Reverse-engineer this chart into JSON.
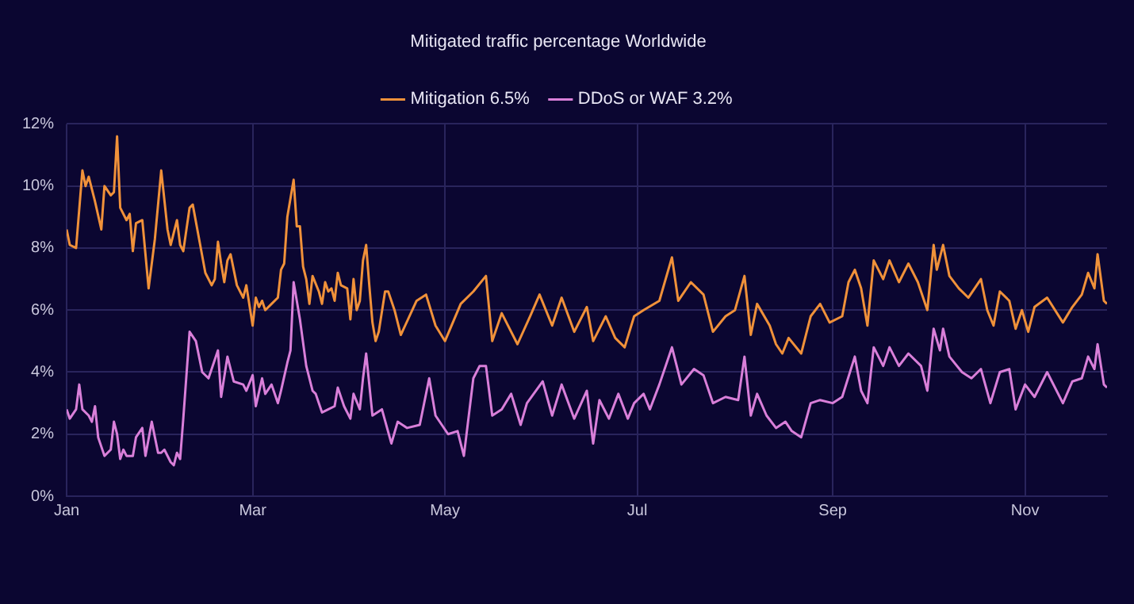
{
  "chart_data": {
    "type": "line",
    "title": "Mitigated traffic percentage Worldwide",
    "legend": "top",
    "grid": true,
    "marker": "none",
    "line_style": "solid",
    "xlim": [
      "--01-01",
      "--11-27"
    ],
    "xticks": [
      {
        "value": "--01-01",
        "label": "Jan"
      },
      {
        "value": "--03-01",
        "label": "Mar"
      },
      {
        "value": "--05-01",
        "label": "May"
      },
      {
        "value": "--07-01",
        "label": "Jul"
      },
      {
        "value": "--09-01",
        "label": "Sep"
      },
      {
        "value": "--11-01",
        "label": "Nov"
      }
    ],
    "ylim": [
      0,
      12
    ],
    "yticks": [
      {
        "value": 0,
        "label": "0%"
      },
      {
        "value": 2,
        "label": "2%"
      },
      {
        "value": 4,
        "label": "4%"
      },
      {
        "value": 6,
        "label": "6%"
      },
      {
        "value": 8,
        "label": "8%"
      },
      {
        "value": 10,
        "label": "10%"
      },
      {
        "value": 12,
        "label": "12%"
      }
    ],
    "series": [
      {
        "name": "Mitigation 6.5%",
        "color": "#f0913a",
        "x": [
          "--01-01",
          "--01-02",
          "--01-04",
          "--01-06",
          "--01-07",
          "--01-08",
          "--01-10",
          "--01-12",
          "--01-13",
          "--01-15",
          "--01-16",
          "--01-17",
          "--01-18",
          "--01-20",
          "--01-21",
          "--01-22",
          "--01-23",
          "--01-25",
          "--01-27",
          "--01-29",
          "--01-31",
          "--02-02",
          "--02-03",
          "--02-05",
          "--02-06",
          "--02-07",
          "--02-09",
          "--02-10",
          "--02-12",
          "--02-14",
          "--02-16",
          "--02-17",
          "--02-18",
          "--02-19",
          "--02-20",
          "--02-21",
          "--02-22",
          "--02-24",
          "--02-26",
          "--02-27",
          "--03-01",
          "--03-02",
          "--03-03",
          "--03-04",
          "--03-05",
          "--03-07",
          "--03-09",
          "--03-10",
          "--03-11",
          "--03-12",
          "--03-14",
          "--03-15",
          "--03-16",
          "--03-17",
          "--03-18",
          "--03-19",
          "--03-20",
          "--03-22",
          "--03-23",
          "--03-24",
          "--03-25",
          "--03-26",
          "--03-27",
          "--03-28",
          "--03-29",
          "--03-31",
          "--04-01",
          "--04-02",
          "--04-03",
          "--04-04",
          "--04-05",
          "--04-06",
          "--04-07",
          "--04-08",
          "--04-09",
          "--04-10",
          "--04-12",
          "--04-13",
          "--04-15",
          "--04-17",
          "--04-22",
          "--04-25",
          "--04-28",
          "--05-01",
          "--05-06",
          "--05-10",
          "--05-14",
          "--05-16",
          "--05-19",
          "--05-24",
          "--05-28",
          "--05-31",
          "--06-04",
          "--06-07",
          "--06-11",
          "--06-15",
          "--06-17",
          "--06-21",
          "--06-24",
          "--06-27",
          "--06-30",
          "--07-03",
          "--07-08",
          "--07-12",
          "--07-14",
          "--07-18",
          "--07-22",
          "--07-25",
          "--07-29",
          "--08-01",
          "--08-04",
          "--08-06",
          "--08-08",
          "--08-12",
          "--08-14",
          "--08-16",
          "--08-18",
          "--08-22",
          "--08-25",
          "--08-28",
          "--08-31",
          "--09-04",
          "--09-06",
          "--09-08",
          "--09-10",
          "--09-12",
          "--09-14",
          "--09-17",
          "--09-19",
          "--09-22",
          "--09-25",
          "--09-28",
          "--10-01",
          "--10-03",
          "--10-04",
          "--10-06",
          "--10-08",
          "--10-11",
          "--10-14",
          "--10-18",
          "--10-20",
          "--10-22",
          "--10-24",
          "--10-27",
          "--10-29",
          "--10-31",
          "--11-02",
          "--11-04",
          "--11-08",
          "--11-13",
          "--11-16",
          "--11-19",
          "--11-21",
          "--11-23",
          "--11-24",
          "--11-26",
          "--11-27"
        ],
        "values": [
          8.6,
          8.1,
          8.0,
          10.5,
          10.0,
          10.3,
          9.5,
          8.6,
          10.0,
          9.7,
          9.8,
          11.6,
          9.3,
          8.9,
          9.1,
          7.9,
          8.8,
          8.9,
          6.7,
          8.3,
          10.5,
          8.6,
          8.1,
          8.9,
          8.1,
          7.9,
          9.3,
          9.4,
          8.3,
          7.2,
          6.8,
          7.0,
          8.2,
          7.5,
          6.9,
          7.6,
          7.8,
          6.8,
          6.4,
          6.8,
          5.5,
          6.4,
          6.1,
          6.3,
          6.0,
          6.2,
          6.4,
          7.3,
          7.5,
          9.0,
          10.2,
          8.7,
          8.7,
          7.4,
          7.0,
          6.2,
          7.1,
          6.6,
          6.2,
          6.9,
          6.6,
          6.7,
          6.3,
          7.2,
          6.8,
          6.7,
          5.7,
          7.0,
          6.0,
          6.3,
          7.6,
          8.1,
          6.8,
          5.6,
          5.0,
          5.3,
          6.6,
          6.6,
          6.0,
          5.2,
          6.3,
          6.5,
          5.5,
          5.0,
          6.2,
          6.6,
          7.1,
          5.0,
          5.9,
          4.9,
          5.8,
          6.5,
          5.5,
          6.4,
          5.3,
          6.1,
          5.0,
          5.8,
          5.1,
          4.8,
          5.8,
          6.0,
          6.3,
          7.7,
          6.3,
          6.9,
          6.5,
          5.3,
          5.8,
          6.0,
          7.1,
          5.2,
          6.2,
          5.5,
          4.9,
          4.6,
          5.1,
          4.6,
          5.8,
          6.2,
          5.6,
          5.8,
          6.9,
          7.3,
          6.7,
          5.5,
          7.6,
          7.0,
          7.6,
          6.9,
          7.5,
          6.9,
          6.0,
          8.1,
          7.3,
          8.1,
          7.1,
          6.7,
          6.4,
          7.0,
          6.0,
          5.5,
          6.6,
          6.3,
          5.4,
          6.0,
          5.3,
          6.1,
          6.4,
          5.6,
          6.1,
          6.5,
          7.2,
          6.7,
          7.8,
          6.3,
          6.2
        ]
      },
      {
        "name": "DDoS or WAF 3.2%",
        "color": "#d97fd9",
        "x": [
          "--01-01",
          "--01-02",
          "--01-04",
          "--01-05",
          "--01-06",
          "--01-08",
          "--01-09",
          "--01-10",
          "--01-11",
          "--01-13",
          "--01-15",
          "--01-16",
          "--01-17",
          "--01-18",
          "--01-19",
          "--01-20",
          "--01-22",
          "--01-23",
          "--01-25",
          "--01-26",
          "--01-28",
          "--01-30",
          "--01-31",
          "--02-01",
          "--02-03",
          "--02-04",
          "--02-05",
          "--02-06",
          "--02-07",
          "--02-09",
          "--02-11",
          "--02-13",
          "--02-15",
          "--02-18",
          "--02-19",
          "--02-21",
          "--02-23",
          "--02-26",
          "--02-27",
          "--03-01",
          "--03-02",
          "--03-04",
          "--03-05",
          "--03-07",
          "--03-09",
          "--03-10",
          "--03-12",
          "--03-13",
          "--03-14",
          "--03-16",
          "--03-18",
          "--03-20",
          "--03-21",
          "--03-23",
          "--03-25",
          "--03-27",
          "--03-28",
          "--03-30",
          "--04-01",
          "--04-02",
          "--04-04",
          "--04-05",
          "--04-06",
          "--04-08",
          "--04-11",
          "--04-14",
          "--04-16",
          "--04-19",
          "--04-23",
          "--04-26",
          "--04-28",
          "--05-02",
          "--05-05",
          "--05-07",
          "--05-10",
          "--05-12",
          "--05-14",
          "--05-16",
          "--05-19",
          "--05-22",
          "--05-25",
          "--05-27",
          "--06-01",
          "--06-04",
          "--06-07",
          "--06-11",
          "--06-15",
          "--06-17",
          "--06-19",
          "--06-22",
          "--06-25",
          "--06-28",
          "--06-30",
          "--07-03",
          "--07-05",
          "--07-08",
          "--07-12",
          "--07-15",
          "--07-19",
          "--07-22",
          "--07-25",
          "--07-29",
          "--08-02",
          "--08-04",
          "--08-06",
          "--08-08",
          "--08-11",
          "--08-14",
          "--08-17",
          "--08-19",
          "--08-22",
          "--08-25",
          "--08-28",
          "--09-01",
          "--09-04",
          "--09-08",
          "--09-10",
          "--09-12",
          "--09-14",
          "--09-17",
          "--09-19",
          "--09-22",
          "--09-25",
          "--09-29",
          "--10-01",
          "--10-03",
          "--10-05",
          "--10-06",
          "--10-08",
          "--10-12",
          "--10-15",
          "--10-18",
          "--10-21",
          "--10-24",
          "--10-27",
          "--10-29",
          "--11-01",
          "--11-04",
          "--11-08",
          "--11-13",
          "--11-16",
          "--11-19",
          "--11-21",
          "--11-23",
          "--11-24",
          "--11-26",
          "--11-27"
        ],
        "values": [
          2.8,
          2.5,
          2.8,
          3.6,
          2.8,
          2.6,
          2.4,
          2.9,
          1.9,
          1.3,
          1.5,
          2.4,
          2.0,
          1.2,
          1.5,
          1.3,
          1.3,
          1.9,
          2.2,
          1.3,
          2.4,
          1.4,
          1.4,
          1.5,
          1.1,
          1.0,
          1.4,
          1.2,
          2.5,
          5.3,
          5.0,
          4.0,
          3.8,
          4.7,
          3.2,
          4.5,
          3.7,
          3.6,
          3.4,
          3.9,
          2.9,
          3.8,
          3.3,
          3.6,
          3.0,
          3.4,
          4.3,
          4.7,
          6.9,
          5.7,
          4.2,
          3.4,
          3.3,
          2.7,
          2.8,
          2.9,
          3.5,
          2.9,
          2.5,
          3.3,
          2.8,
          3.8,
          4.6,
          2.6,
          2.8,
          1.7,
          2.4,
          2.2,
          2.3,
          3.8,
          2.6,
          2.0,
          2.1,
          1.3,
          3.8,
          4.2,
          4.2,
          2.6,
          2.8,
          3.3,
          2.3,
          3.0,
          3.7,
          2.6,
          3.6,
          2.5,
          3.4,
          1.7,
          3.1,
          2.5,
          3.3,
          2.5,
          3.0,
          3.3,
          2.8,
          3.6,
          4.8,
          3.6,
          4.1,
          3.9,
          3.0,
          3.2,
          3.1,
          4.5,
          2.6,
          3.3,
          2.6,
          2.2,
          2.4,
          2.1,
          1.9,
          3.0,
          3.1,
          3.0,
          3.2,
          4.5,
          3.4,
          3.0,
          4.8,
          4.2,
          4.8,
          4.2,
          4.6,
          4.2,
          3.4,
          5.4,
          4.7,
          5.4,
          4.5,
          4.0,
          3.8,
          4.1,
          3.0,
          4.0,
          4.1,
          2.8,
          3.6,
          3.2,
          4.0,
          3.0,
          3.7,
          3.8,
          4.5,
          4.1,
          4.9,
          3.6,
          3.5
        ]
      }
    ]
  }
}
